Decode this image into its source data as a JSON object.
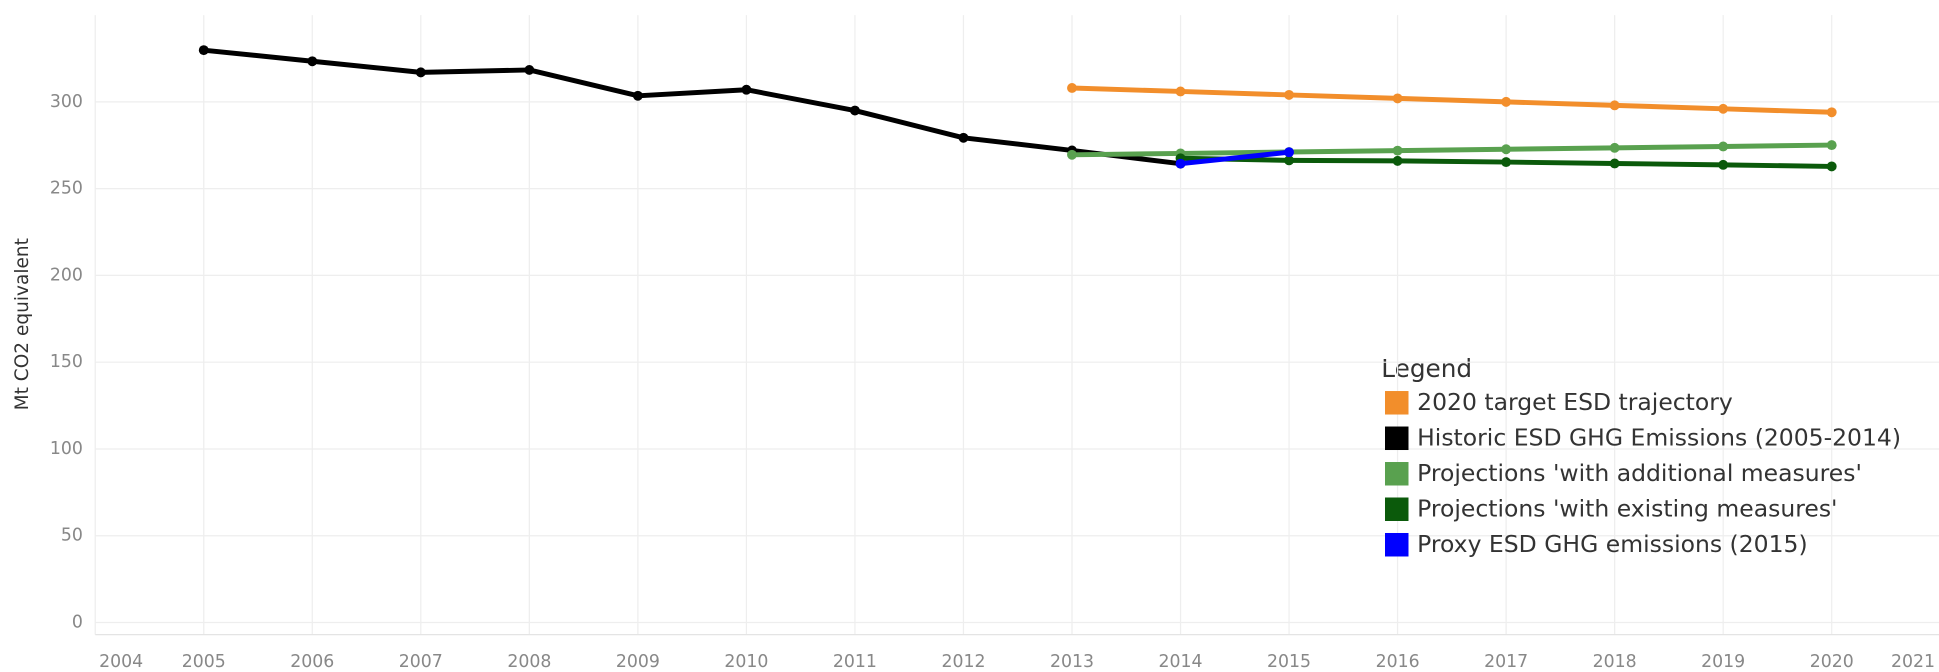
{
  "chart_data": {
    "type": "line",
    "ylabel": "Mt CO2 equivalent",
    "legend_title": "Legend",
    "legend": "bottom-right",
    "grid": true,
    "x": [
      2005,
      2006,
      2007,
      2008,
      2009,
      2010,
      2011,
      2012,
      2013,
      2014,
      2015,
      2016,
      2017,
      2018,
      2019,
      2020
    ],
    "series": [
      {
        "name": "2020 target ESD trajectory",
        "color": "#f28e2b",
        "values": [
          null,
          null,
          null,
          null,
          null,
          null,
          null,
          null,
          308,
          306,
          304,
          302,
          300,
          298,
          296,
          294
        ]
      },
      {
        "name": "Historic ESD GHG Emissions (2005-2014)",
        "color": "#000000",
        "values": [
          329.8,
          323.4,
          317,
          318.4,
          303.5,
          307,
          295,
          279.3,
          272,
          264.4,
          null,
          null,
          null,
          null,
          null,
          null
        ]
      },
      {
        "name": "Projections 'with additional measures'",
        "color": "#59a14f",
        "values": [
          null,
          null,
          null,
          null,
          null,
          null,
          null,
          null,
          269.5,
          270.3,
          271.1,
          271.9,
          272.7,
          273.5,
          274.3,
          275.1
        ]
      },
      {
        "name": "Projections 'with existing measures'",
        "color": "#0b5a0b",
        "values": [
          null,
          null,
          null,
          null,
          null,
          null,
          null,
          null,
          null,
          267.5,
          266.3,
          266,
          265.3,
          264.5,
          263.7,
          262.8
        ]
      },
      {
        "name": "Proxy ESD GHG emissions (2015)",
        "color": "#0000ff",
        "values": [
          null,
          null,
          null,
          null,
          null,
          null,
          null,
          null,
          null,
          264.4,
          271,
          null,
          null,
          null,
          null,
          null
        ]
      }
    ],
    "xlim": [
      2004,
      2021
    ],
    "xticks": [
      2004,
      2005,
      2006,
      2007,
      2008,
      2009,
      2010,
      2011,
      2012,
      2013,
      2014,
      2015,
      2016,
      2017,
      2018,
      2019,
      2020,
      2021
    ],
    "ylim": [
      -7,
      350
    ],
    "yticks": [
      0,
      50,
      100,
      150,
      200,
      250,
      300
    ]
  }
}
